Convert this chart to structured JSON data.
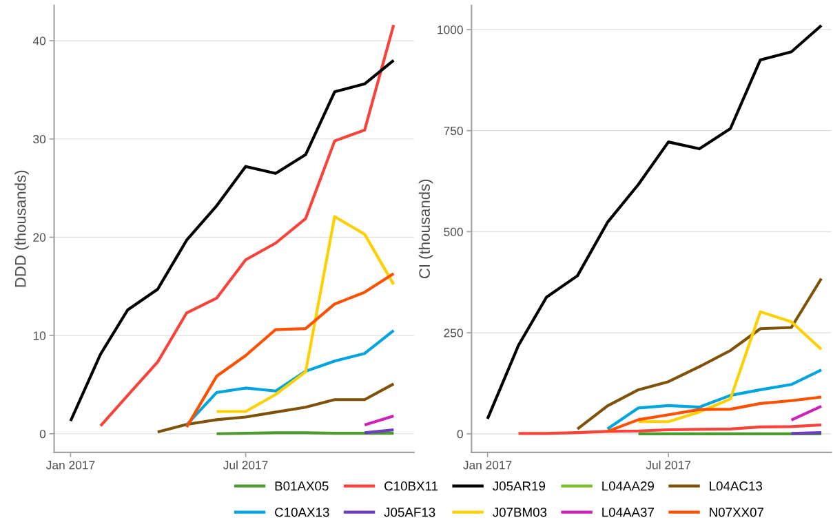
{
  "chart_data": [
    {
      "type": "line",
      "ylabel": "DDD (thousands)",
      "x": [
        "2017-01",
        "2017-02",
        "2017-03",
        "2017-04",
        "2017-05",
        "2017-06",
        "2017-07",
        "2017-08",
        "2017-09",
        "2017-10",
        "2017-11",
        "2017-12"
      ],
      "xlim": [
        "2016-12-15",
        "2017-12-22"
      ],
      "xticks": [
        {
          "value": "2017-01",
          "label": "Jan 2017"
        },
        {
          "value": "2017-07",
          "label": "Jul 2017"
        }
      ],
      "ylim": [
        -1.9,
        43.6
      ],
      "yticks": [
        0,
        10,
        20,
        30,
        40
      ],
      "grid": "y",
      "legend": "bottom",
      "line_style": "solid",
      "marker": "none",
      "series": [
        {
          "name": "B01AX05",
          "color": "#4b9b2f",
          "values": [
            null,
            null,
            null,
            null,
            null,
            0,
            0.05,
            0.1,
            0.1,
            0.05,
            0.05,
            0.05
          ]
        },
        {
          "name": "C10BX11",
          "color": "#f8423a",
          "values": [
            null,
            0.8,
            3.9,
            7.3,
            12.3,
            13.8,
            17.7,
            19.4,
            21.9,
            29.8,
            30.9,
            41.6
          ]
        },
        {
          "name": "J05AR19",
          "color": "#000000",
          "values": [
            1.3,
            8.1,
            12.6,
            14.7,
            19.7,
            23.2,
            27.2,
            26.5,
            28.4,
            34.8,
            35.6,
            38.0
          ]
        },
        {
          "name": "L04AA29",
          "color": "#7cbf29",
          "values": [
            null,
            null,
            null,
            null,
            null,
            null,
            null,
            null,
            null,
            null,
            null,
            null
          ]
        },
        {
          "name": "L04AC13",
          "color": "#7f5209",
          "values": [
            null,
            null,
            null,
            0.18,
            0.95,
            1.43,
            1.7,
            2.2,
            2.7,
            3.47,
            3.47,
            5.08
          ]
        },
        {
          "name": "C10AX13",
          "color": "#00a5e0",
          "values": [
            null,
            null,
            null,
            null,
            0.9,
            4.2,
            4.65,
            4.35,
            6.36,
            7.4,
            8.17,
            10.5
          ]
        },
        {
          "name": "J05AF13",
          "color": "#6f3cc0",
          "values": [
            null,
            null,
            null,
            null,
            null,
            null,
            null,
            null,
            null,
            null,
            0.1,
            0.4
          ]
        },
        {
          "name": "J07BM03",
          "color": "#ffd000",
          "values": [
            null,
            null,
            null,
            null,
            null,
            2.26,
            2.26,
            4.0,
            6.3,
            22.1,
            20.3,
            15.2
          ]
        },
        {
          "name": "L04AA37",
          "color": "#cc22b8",
          "values": [
            null,
            null,
            null,
            null,
            null,
            null,
            null,
            null,
            null,
            null,
            0.9,
            1.8
          ]
        },
        {
          "name": "N07XX07",
          "color": "#ff5000",
          "values": [
            null,
            null,
            null,
            null,
            0.68,
            5.85,
            7.96,
            10.6,
            10.7,
            13.2,
            14.4,
            16.3
          ]
        }
      ]
    },
    {
      "type": "line",
      "ylabel": "CI (thousands)",
      "x": [
        "2017-01",
        "2017-02",
        "2017-03",
        "2017-04",
        "2017-05",
        "2017-06",
        "2017-07",
        "2017-08",
        "2017-09",
        "2017-10",
        "2017-11",
        "2017-12"
      ],
      "xlim": [
        "2016-12-16",
        "2017-12-11"
      ],
      "xticks": [
        {
          "value": "2017-01",
          "label": "Jan 2017"
        },
        {
          "value": "2017-07",
          "label": "Jul 2017"
        }
      ],
      "ylim": [
        -46,
        1060
      ],
      "yticks": [
        0,
        250,
        500,
        750,
        1000
      ],
      "grid": "y",
      "line_style": "solid",
      "marker": "none",
      "series": [
        {
          "color": "#4b9b2f",
          "values": [
            null,
            null,
            null,
            null,
            null,
            0,
            0,
            0,
            0,
            0,
            0,
            0
          ]
        },
        {
          "color": "#f8423a",
          "values": [
            null,
            1,
            1,
            3,
            6,
            7,
            10,
            11,
            12,
            17,
            18,
            22
          ]
        },
        {
          "color": "#000000",
          "values": [
            37,
            219,
            338,
            391,
            523,
            617,
            722,
            705,
            755,
            925,
            945,
            1010
          ]
        },
        {
          "color": "#7cbf29",
          "values": [
            null,
            null,
            null,
            null,
            null,
            null,
            null,
            null,
            null,
            null,
            null,
            null
          ]
        },
        {
          "color": "#7f5209",
          "values": [
            null,
            null,
            null,
            12,
            69,
            109,
            129,
            166,
            206,
            260,
            263,
            384
          ]
        },
        {
          "color": "#00a5e0",
          "values": [
            null,
            null,
            null,
            null,
            12,
            64,
            70,
            66,
            95,
            109,
            122,
            158
          ]
        },
        {
          "color": "#6f3cc0",
          "values": [
            null,
            null,
            null,
            null,
            null,
            null,
            null,
            null,
            null,
            null,
            1,
            3
          ]
        },
        {
          "color": "#ffd000",
          "values": [
            null,
            null,
            null,
            null,
            null,
            30,
            30,
            54,
            86,
            302,
            277,
            209
          ]
        },
        {
          "color": "#cc22b8",
          "values": [
            null,
            null,
            null,
            null,
            null,
            null,
            null,
            null,
            null,
            null,
            34,
            68
          ]
        },
        {
          "color": "#ff5000",
          "values": [
            null,
            null,
            null,
            null,
            6,
            35,
            47,
            60,
            61,
            75,
            82,
            91
          ]
        }
      ]
    }
  ]
}
